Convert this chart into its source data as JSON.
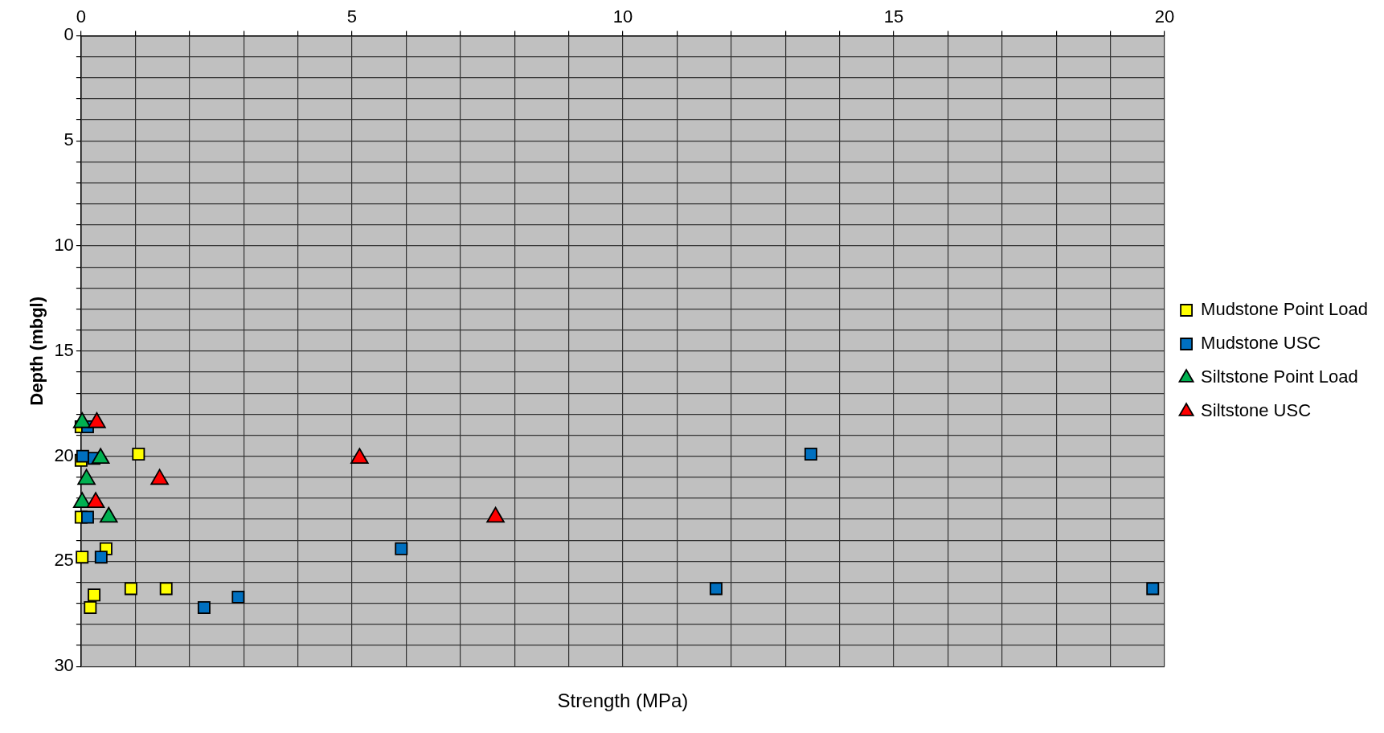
{
  "chart_data": {
    "type": "scatter",
    "xlabel": "Strength (MPa)",
    "ylabel": "Depth (mbgl)",
    "xlim": [
      0,
      20
    ],
    "xticks": [
      0,
      {
        "value": 1,
        "label": null
      },
      {
        "value": 2,
        "label": null
      },
      {
        "value": 3,
        "label": null
      },
      {
        "value": 4,
        "label": null
      },
      5,
      {
        "value": 6,
        "label": null
      },
      {
        "value": 7,
        "label": null
      },
      {
        "value": 8,
        "label": null
      },
      {
        "value": 9,
        "label": null
      },
      10,
      {
        "value": 11,
        "label": null
      },
      {
        "value": 12,
        "label": null
      },
      {
        "value": 13,
        "label": null
      },
      {
        "value": 14,
        "label": null
      },
      15,
      {
        "value": 16,
        "label": null
      },
      {
        "value": 17,
        "label": null
      },
      {
        "value": 18,
        "label": null
      },
      {
        "value": 19,
        "label": null
      },
      20
    ],
    "ylim": [
      30,
      0
    ],
    "yticks": [
      0,
      {
        "value": 1,
        "label": null
      },
      {
        "value": 2,
        "label": null
      },
      {
        "value": 3,
        "label": null
      },
      {
        "value": 4,
        "label": null
      },
      5,
      {
        "value": 6,
        "label": null
      },
      {
        "value": 7,
        "label": null
      },
      {
        "value": 8,
        "label": null
      },
      {
        "value": 9,
        "label": null
      },
      10,
      {
        "value": 11,
        "label": null
      },
      {
        "value": 12,
        "label": null
      },
      {
        "value": 13,
        "label": null
      },
      {
        "value": 14,
        "label": null
      },
      15,
      {
        "value": 16,
        "label": null
      },
      {
        "value": 17,
        "label": null
      },
      {
        "value": 18,
        "label": null
      },
      {
        "value": 19,
        "label": null
      },
      20,
      {
        "value": 21,
        "label": null
      },
      {
        "value": 22,
        "label": null
      },
      {
        "value": 23,
        "label": null
      },
      {
        "value": 24,
        "label": null
      },
      25,
      {
        "value": 26,
        "label": null
      },
      {
        "value": 27,
        "label": null
      },
      {
        "value": 28,
        "label": null
      },
      {
        "value": 29,
        "label": null
      },
      30
    ],
    "grid": true,
    "legend": "right",
    "series": [
      {
        "name": "Mudstone Point Load",
        "color": "#ffff00",
        "marker": "square",
        "x": [
          0,
          1.06,
          0,
          0,
          0.46,
          0.02,
          0.92,
          1.57,
          0.24,
          0.17
        ],
        "values": [
          18.6,
          19.9,
          20.2,
          22.9,
          24.4,
          24.8,
          26.3,
          26.3,
          26.6,
          27.2
        ]
      },
      {
        "name": "Mudstone USC",
        "color": "#0070c0",
        "marker": "square",
        "x": [
          0.12,
          0.03,
          0.24,
          0.12,
          0.37,
          5.91,
          2.27,
          2.9,
          13.47,
          11.72,
          19.78
        ],
        "values": [
          18.6,
          20.0,
          20.1,
          22.9,
          24.8,
          24.4,
          27.2,
          26.7,
          19.9,
          26.3,
          26.3
        ]
      },
      {
        "name": "Siltstone Point Load",
        "color": "#00b050",
        "marker": "triangle",
        "x": [
          0.02,
          0.36,
          0.1,
          0.02,
          0.51
        ],
        "values": [
          18.4,
          20.1,
          21.1,
          22.2,
          22.9
        ]
      },
      {
        "name": "Siltstone USC",
        "color": "#ff0000",
        "marker": "triangle",
        "x": [
          0.29,
          1.45,
          0.27,
          5.14,
          7.65
        ],
        "values": [
          18.4,
          21.1,
          22.2,
          20.1,
          22.9
        ]
      }
    ]
  }
}
